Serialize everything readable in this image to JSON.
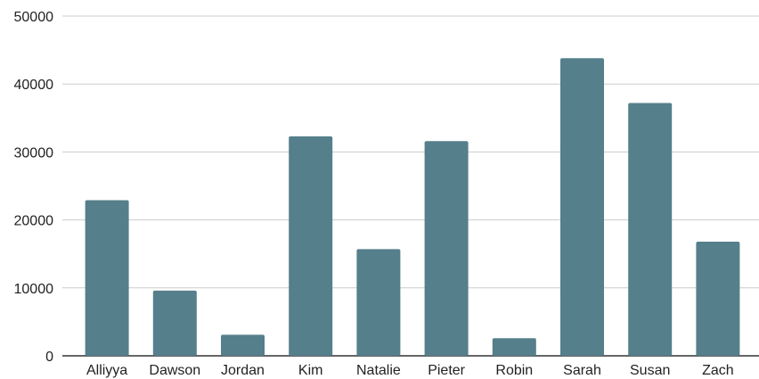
{
  "chart_data": {
    "type": "bar",
    "categories": [
      "Alliyya",
      "Dawson",
      "Jordan",
      "Kim",
      "Natalie",
      "Pieter",
      "Robin",
      "Sarah",
      "Susan",
      "Zach"
    ],
    "values": [
      22900,
      9600,
      3100,
      32300,
      15700,
      31600,
      2600,
      43800,
      37200,
      16800
    ],
    "title": "",
    "xlabel": "",
    "ylabel": "",
    "ylim": [
      0,
      50000
    ],
    "yticks": [
      0,
      10000,
      20000,
      30000,
      40000,
      50000
    ],
    "ytick_labels": [
      "0",
      "10000",
      "20000",
      "30000",
      "40000",
      "50000"
    ],
    "grid": true,
    "legend": "none",
    "bar_color": "#557f8b"
  }
}
